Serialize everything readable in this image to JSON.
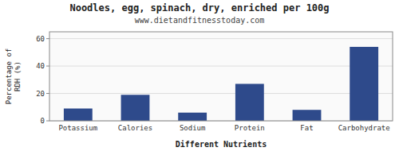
{
  "chart_data": {
    "type": "bar",
    "title": "Noodles, egg, spinach, dry, enriched per 100g",
    "subtitle": "www.dietandfitnesstoday.com",
    "xlabel": "Different Nutrients",
    "ylabel": "Percentage of\nRDH (%)",
    "categories": [
      "Potassium",
      "Calories",
      "Sodium",
      "Protein",
      "Fat",
      "Carbohydrate"
    ],
    "values": [
      9,
      19,
      6,
      27,
      8,
      54
    ],
    "color": "#2E4A8B",
    "ylim": [
      0,
      65
    ],
    "yticks": [
      0,
      20,
      40,
      60
    ],
    "grid": true
  }
}
